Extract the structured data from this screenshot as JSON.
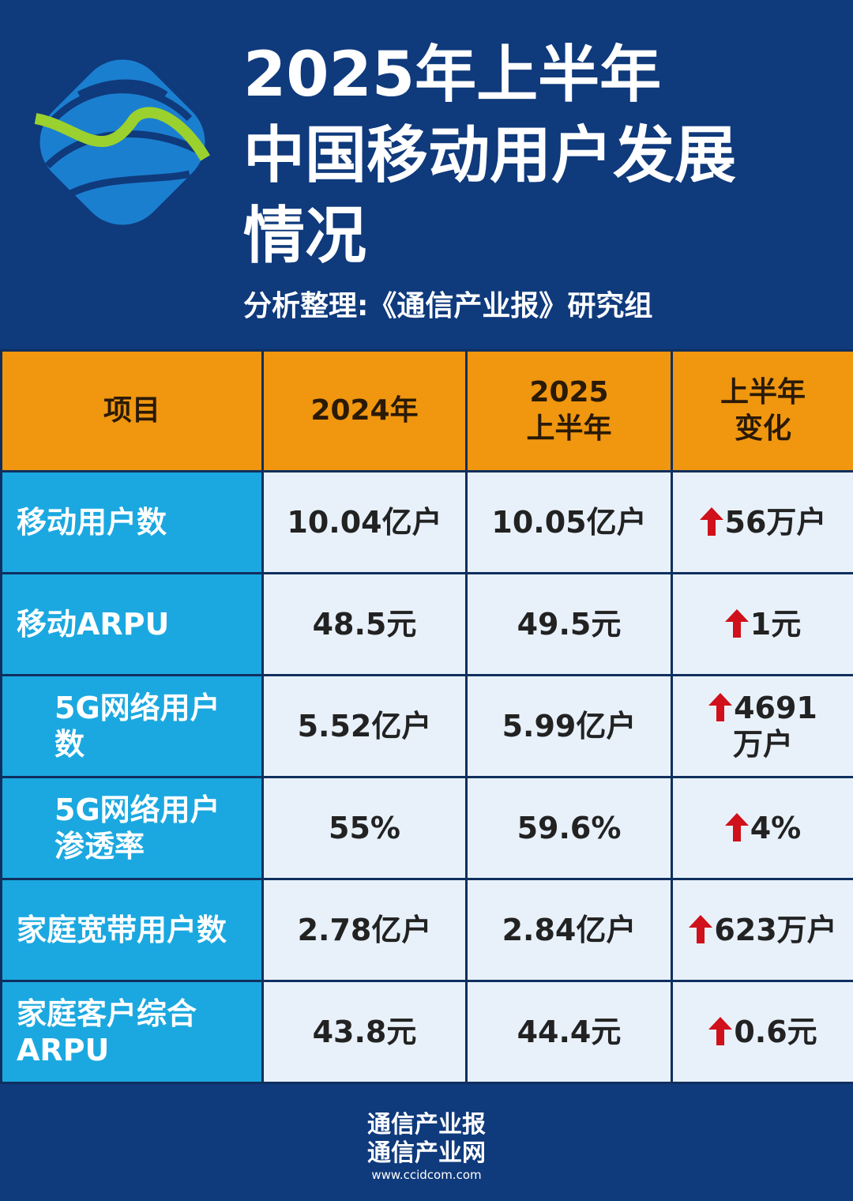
{
  "header": {
    "title": "2025年上半年\n中国移动用户发展\n情况",
    "subtitle": "分析整理:《通信产业报》研究组"
  },
  "table": {
    "columns": [
      "项目",
      "2024年",
      "2025\n上半年",
      "上半年\n变化"
    ],
    "rows": [
      [
        "移动用户数",
        "10.04亿户",
        "10.05亿户",
        "56万户"
      ],
      [
        "移动ARPU",
        "48.5元",
        "49.5元",
        "1元"
      ],
      [
        "5G网络用户数",
        "5.52亿户",
        "5.99亿户",
        "4691\n万户"
      ],
      [
        "5G网络用户渗透率",
        "55%",
        "59.6%",
        "4%"
      ],
      [
        "家庭宽带用户数",
        "2.78亿户",
        "2.84亿户",
        "623万户"
      ],
      [
        "家庭客户综合ARPU",
        "43.8元",
        "44.4元",
        "0.6元"
      ]
    ]
  },
  "footer": {
    "lines": [
      "通信产业报",
      "通信产业网"
    ],
    "url": "www.ccidcom.com"
  }
}
